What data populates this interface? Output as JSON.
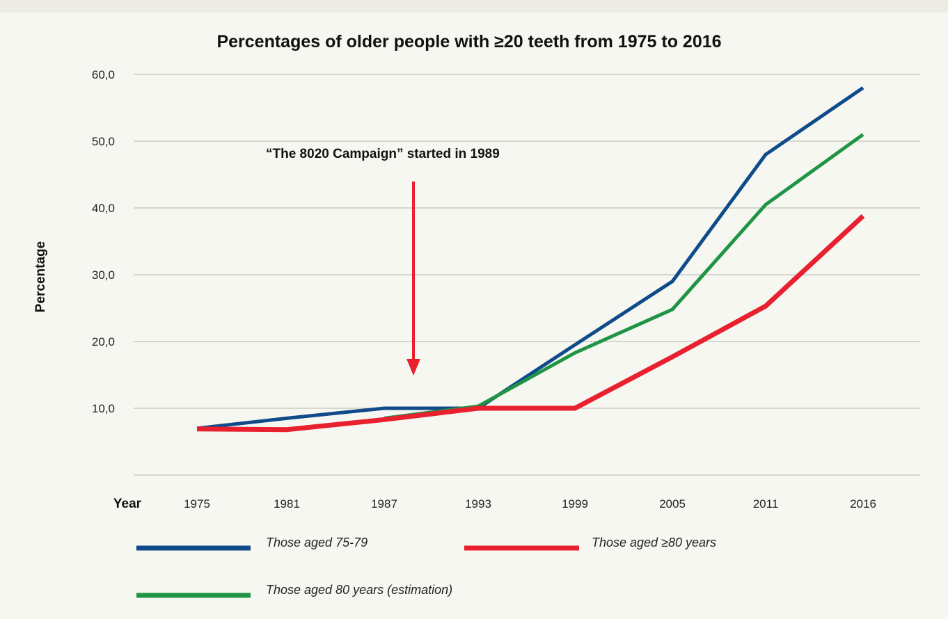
{
  "chart_data": {
    "type": "line",
    "title": "Percentages of older people with ≥20 teeth from 1975 to 2016",
    "xlabel": "Year",
    "ylabel": "Percentage",
    "categories": [
      "1975",
      "1981",
      "1987",
      "1993",
      "1999",
      "2005",
      "2011",
      "2016"
    ],
    "yticks": [
      "10,0",
      "20,0",
      "30,0",
      "40,0",
      "50,0",
      "60,0"
    ],
    "ylim": [
      0,
      60
    ],
    "grid": true,
    "series": [
      {
        "name": "Those aged 75-79",
        "color": "#0f4a8a",
        "values": [
          7.0,
          8.5,
          10.0,
          10.0,
          19.5,
          29.0,
          48.0,
          58.0
        ]
      },
      {
        "name": "Those aged 80 years (estimation)",
        "color": "#1f9445",
        "values": [
          null,
          null,
          8.5,
          10.3,
          18.3,
          24.8,
          40.5,
          51.0
        ]
      },
      {
        "name": "Those aged ≥80 years",
        "color": "#e8202f",
        "values": [
          6.9,
          6.8,
          8.3,
          10.0,
          10.0,
          17.7,
          25.3,
          38.8
        ]
      }
    ],
    "annotation": {
      "text": "“The 8020 Campaign” started in 1989",
      "arrow_color": "#e8202f"
    },
    "legend": {
      "placement": "bottom",
      "order": [
        "Those aged 75-79",
        "Those aged ≥80 years",
        "Those aged 80 years (estimation)"
      ]
    }
  }
}
